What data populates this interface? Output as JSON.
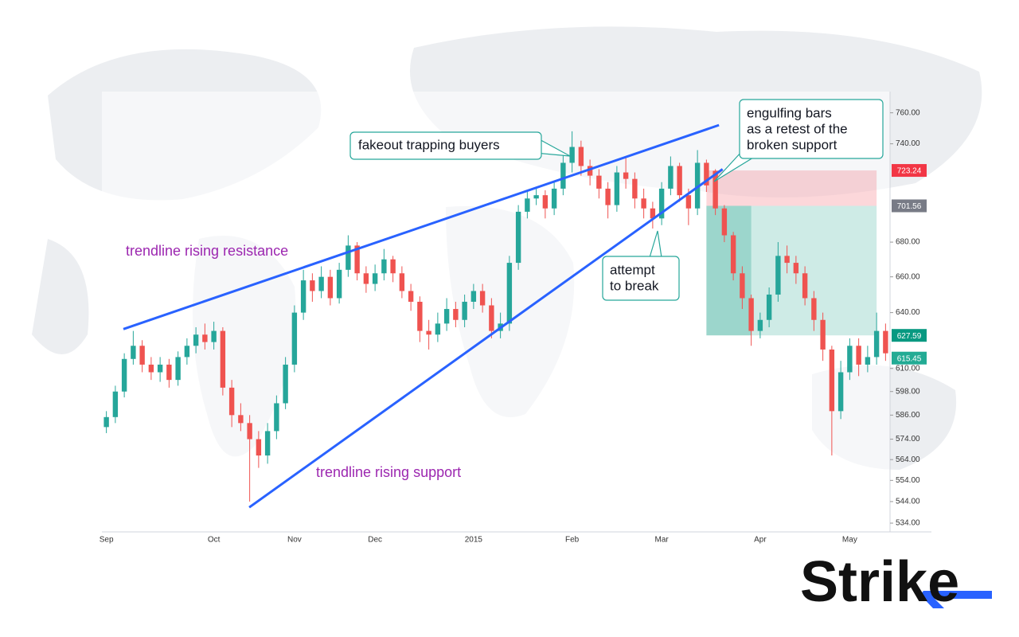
{
  "chart_data": {
    "type": "candlestick",
    "log": true,
    "up_color": "#26a69a",
    "down_color": "#ef5350",
    "categories": [
      "Sep",
      null,
      null,
      null,
      null,
      null,
      null,
      null,
      null,
      null,
      null,
      null,
      "Oct",
      null,
      null,
      null,
      null,
      null,
      null,
      null,
      null,
      "Nov",
      null,
      null,
      null,
      null,
      null,
      null,
      null,
      null,
      "Dec",
      null,
      null,
      null,
      null,
      null,
      null,
      null,
      null,
      null,
      null,
      "2015",
      null,
      null,
      null,
      null,
      null,
      null,
      null,
      null,
      null,
      null,
      "Feb",
      null,
      null,
      null,
      null,
      null,
      null,
      null,
      null,
      null,
      "Mar",
      null,
      null,
      null,
      null,
      null,
      null,
      null,
      null,
      null,
      null,
      "Apr",
      null,
      null,
      null,
      null,
      null,
      null,
      null,
      null,
      null,
      "May",
      null,
      null,
      null,
      null
    ],
    "open": [
      580,
      585,
      598,
      615,
      622,
      612,
      608,
      612,
      604,
      616,
      622,
      628,
      624,
      630,
      600,
      586,
      582,
      574,
      566,
      578,
      592,
      612,
      640,
      658,
      652,
      660,
      648,
      664,
      678,
      662,
      656,
      662,
      670,
      662,
      652,
      646,
      630,
      628,
      634,
      642,
      636,
      646,
      652,
      644,
      630,
      634,
      668,
      698,
      706,
      708,
      700,
      712,
      728,
      738,
      726,
      720,
      712,
      702,
      722,
      718,
      706,
      700,
      694,
      712,
      726,
      708,
      700,
      728,
      723,
      700,
      684,
      662,
      648,
      630,
      636,
      650,
      672,
      668,
      662,
      648,
      636,
      620,
      588,
      608,
      622,
      612,
      616,
      630
    ],
    "high": [
      588,
      601,
      618,
      630,
      625,
      616,
      616,
      615,
      619,
      626,
      632,
      634,
      635,
      632,
      604,
      592,
      586,
      578,
      582,
      596,
      616,
      644,
      664,
      662,
      666,
      664,
      668,
      684,
      680,
      666,
      667,
      676,
      672,
      666,
      656,
      649,
      636,
      640,
      648,
      646,
      650,
      656,
      656,
      648,
      640,
      672,
      702,
      710,
      712,
      711,
      716,
      734,
      748,
      742,
      730,
      724,
      716,
      726,
      732,
      722,
      712,
      704,
      716,
      732,
      728,
      712,
      736,
      730,
      724,
      702,
      686,
      666,
      650,
      640,
      654,
      680,
      678,
      672,
      666,
      652,
      640,
      622,
      614,
      626,
      626,
      622,
      640,
      634
    ],
    "low": [
      577,
      582,
      595,
      612,
      608,
      604,
      603,
      600,
      601,
      612,
      618,
      620,
      620,
      596,
      580,
      578,
      544,
      560,
      562,
      574,
      589,
      608,
      636,
      646,
      648,
      644,
      645,
      660,
      658,
      651,
      652,
      658,
      657,
      648,
      641,
      624,
      620,
      624,
      630,
      632,
      632,
      642,
      640,
      626,
      626,
      630,
      664,
      694,
      702,
      694,
      696,
      708,
      722,
      720,
      714,
      706,
      694,
      698,
      712,
      700,
      694,
      688,
      690,
      708,
      704,
      690,
      696,
      710,
      696,
      680,
      658,
      642,
      622,
      626,
      632,
      646,
      662,
      656,
      644,
      630,
      614,
      566,
      584,
      604,
      606,
      608,
      612,
      614
    ],
    "close": [
      585,
      598,
      615,
      622,
      612,
      608,
      612,
      604,
      616,
      622,
      628,
      624,
      630,
      600,
      586,
      582,
      574,
      566,
      578,
      592,
      612,
      640,
      658,
      652,
      660,
      648,
      664,
      678,
      662,
      656,
      662,
      670,
      662,
      652,
      646,
      630,
      628,
      634,
      642,
      636,
      646,
      652,
      644,
      630,
      634,
      668,
      698,
      706,
      708,
      700,
      712,
      728,
      738,
      726,
      720,
      712,
      702,
      722,
      718,
      706,
      700,
      694,
      712,
      726,
      708,
      700,
      728,
      714,
      700,
      684,
      662,
      648,
      630,
      636,
      650,
      672,
      668,
      662,
      648,
      636,
      620,
      588,
      608,
      622,
      612,
      616,
      630,
      618
    ],
    "ylim": [
      530,
      774
    ],
    "yticks": [
      {
        "value": 760,
        "label": "760.00"
      },
      {
        "value": 740,
        "label": "740.00"
      },
      {
        "value": 680,
        "label": "680.00"
      },
      {
        "value": 660,
        "label": "660.00"
      },
      {
        "value": 640,
        "label": "640.00"
      },
      {
        "value": 610,
        "label": "610.00"
      },
      {
        "value": 598,
        "label": "598.00"
      },
      {
        "value": 586,
        "label": "586.00"
      },
      {
        "value": 574,
        "label": "574.00"
      },
      {
        "value": 564,
        "label": "564.00"
      },
      {
        "value": 554,
        "label": "554.00"
      },
      {
        "value": 544,
        "label": "544.00"
      },
      {
        "value": 534,
        "label": "534.00"
      }
    ],
    "trendlines": [
      {
        "label": "trendline rising resistance",
        "color": "#2962ff",
        "x": [
          1.9,
          68.4
        ],
        "y": [
          631,
          752
        ]
      },
      {
        "label": "trendline rising support",
        "color": "#2962ff",
        "x": [
          15.95,
          68.8
        ],
        "y": [
          541.3,
          724
        ]
      }
    ],
    "position": {
      "start": 67,
      "end": 86,
      "entry": 701.56,
      "stop": 723.24,
      "target": 627.59,
      "hold_end": 72
    },
    "price_labels": [
      {
        "value": 723.24,
        "color": "#f23645"
      },
      {
        "value": 701.56,
        "color": "#787b86"
      },
      {
        "value": 627.59,
        "color": "#089981"
      },
      {
        "value": 615.45,
        "color": "#22ab94"
      }
    ],
    "annotations": [
      {
        "lines": [
          "fakeout trapping buyers"
        ]
      },
      {
        "lines": [
          "engulfing bars",
          "as a retest of the",
          "broken support"
        ]
      },
      {
        "lines": [
          "attempt",
          "to break"
        ]
      }
    ]
  },
  "brand": "Strike"
}
